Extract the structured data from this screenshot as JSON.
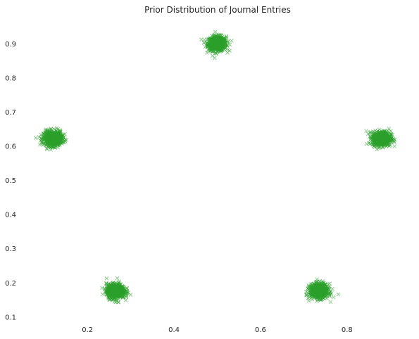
{
  "chart_data": {
    "type": "scatter",
    "title": "Prior Distribution of Journal Entries",
    "xlabel": "",
    "ylabel": "",
    "xlim": [
      0.05,
      0.95
    ],
    "ylim": [
      0.08,
      0.97
    ],
    "xticks": [
      0.2,
      0.4,
      0.6,
      0.8
    ],
    "yticks": [
      0.1,
      0.2,
      0.3,
      0.4,
      0.5,
      0.6,
      0.7,
      0.8,
      0.9
    ],
    "xtick_labels": [
      "0.2",
      "0.4",
      "0.6",
      "0.8"
    ],
    "ytick_labels": [
      "0.1",
      "0.2",
      "0.3",
      "0.4",
      "0.5",
      "0.6",
      "0.7",
      "0.8",
      "0.9"
    ],
    "grid": false,
    "legend": "none",
    "marker": "x",
    "color": "#2ca02c",
    "clusters": [
      {
        "center": [
          0.5,
          0.9
        ],
        "spread": 0.025
      },
      {
        "center": [
          0.12,
          0.622
        ],
        "spread": 0.025
      },
      {
        "center": [
          0.88,
          0.622
        ],
        "spread": 0.025
      },
      {
        "center": [
          0.265,
          0.175
        ],
        "spread": 0.025
      },
      {
        "center": [
          0.735,
          0.175
        ],
        "spread": 0.025
      }
    ],
    "points_per_cluster": 700
  }
}
